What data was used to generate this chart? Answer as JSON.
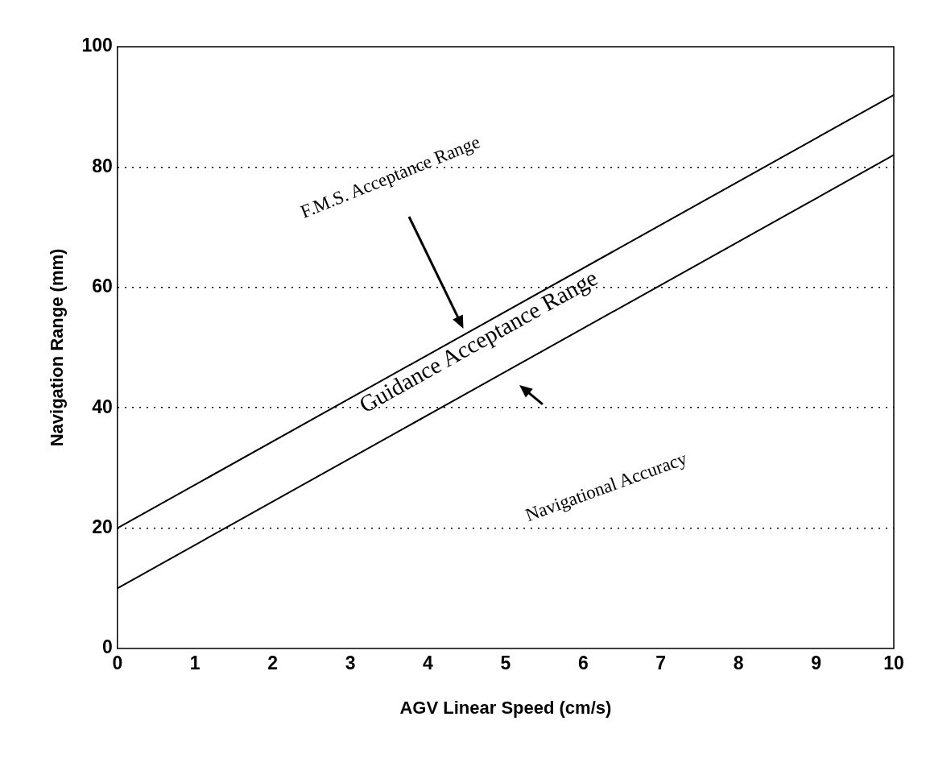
{
  "chart_data": {
    "type": "line",
    "xlabel": "AGV Linear Speed (cm/s)",
    "ylabel": "Navigation Range (mm)",
    "x": [
      0,
      10
    ],
    "series": [
      {
        "color": "#000000",
        "values": [
          20,
          92
        ]
      },
      {
        "color": "#000000",
        "values": [
          10,
          82
        ]
      }
    ],
    "xlim": [
      0,
      10
    ],
    "xticks": [
      0,
      1,
      2,
      3,
      4,
      5,
      6,
      7,
      8,
      9,
      10
    ],
    "ylim": [
      0,
      100
    ],
    "yticks": [
      0,
      20,
      40,
      60,
      80,
      100
    ],
    "grid": "y",
    "legend": false,
    "line_style": "solid",
    "annotations": [
      "Guidance Acceptance Range",
      "F.M.S. Acceptance Range",
      "Navigational Accuracy"
    ]
  }
}
